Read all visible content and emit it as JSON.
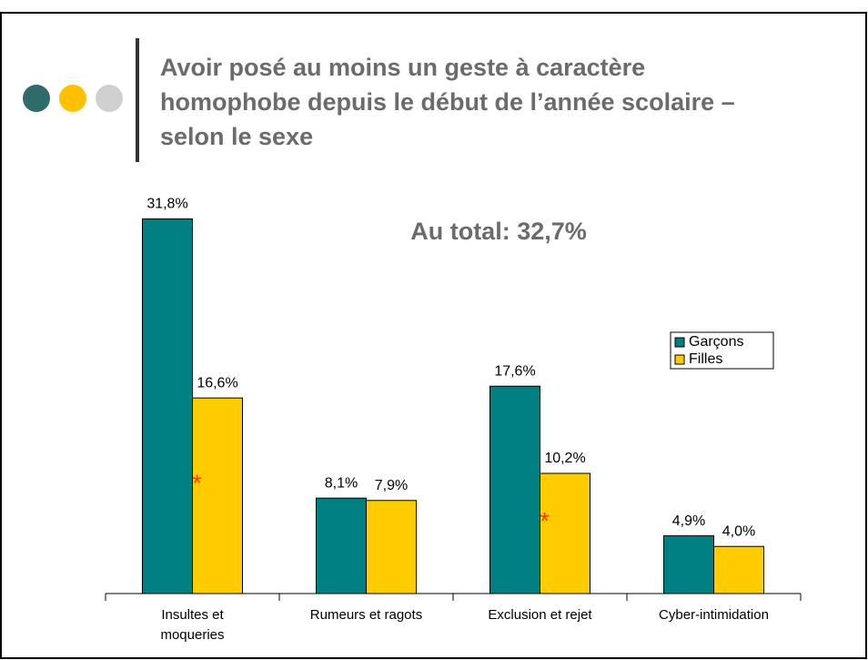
{
  "title_lines": [
    "Avoir posé au moins un geste à caractère",
    "homophobe depuis le début de l’année scolaire –",
    "selon le sexe"
  ],
  "chart_data": {
    "type": "bar",
    "annotation": "Au total: 32,7%",
    "categories": [
      "Insultes et moqueries",
      "Rumeurs et ragots",
      "Exclusion et rejet",
      "Cyber-intimidation"
    ],
    "series": [
      {
        "name": "Garçons",
        "color": "#008080",
        "values": [
          31.8,
          8.1,
          17.6,
          4.9
        ],
        "value_labels": [
          "31,8%",
          "8,1%",
          "17,6%",
          "4,9%"
        ]
      },
      {
        "name": "Filles",
        "color": "#ffcc00",
        "values": [
          16.6,
          7.9,
          10.2,
          4.0
        ],
        "value_labels": [
          "16,6%",
          "7,9%",
          "10,2%",
          "4,0%"
        ],
        "significance_marker": "*",
        "significant": [
          true,
          false,
          true,
          false
        ]
      }
    ],
    "ylim": [
      0,
      35
    ],
    "legend": "right"
  }
}
